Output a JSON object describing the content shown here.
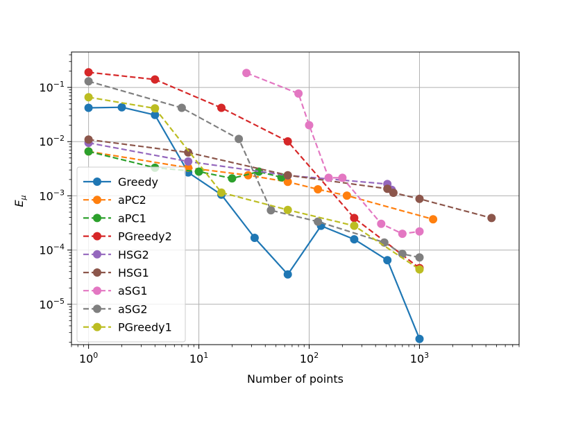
{
  "chart_data": {
    "type": "line",
    "title": "",
    "xlabel": "Number of points",
    "ylabel_main": "E",
    "ylabel_sub": "μ",
    "xscale": "log",
    "yscale": "log",
    "xlim": [
      0.7,
      8000
    ],
    "ylim": [
      1.8e-06,
      0.45
    ],
    "grid": true,
    "legend_position": "lower-left",
    "x_ticks": [
      {
        "value": 1,
        "base": "10",
        "exp": "0"
      },
      {
        "value": 10,
        "base": "10",
        "exp": "1"
      },
      {
        "value": 100,
        "base": "10",
        "exp": "2"
      },
      {
        "value": 1000,
        "base": "10",
        "exp": "3"
      }
    ],
    "y_ticks": [
      {
        "value": 0.1,
        "base": "10",
        "exp": "−1"
      },
      {
        "value": 0.01,
        "base": "10",
        "exp": "−2"
      },
      {
        "value": 0.001,
        "base": "10",
        "exp": "−3"
      },
      {
        "value": 0.0001,
        "base": "10",
        "exp": "−4"
      },
      {
        "value": 1e-05,
        "base": "10",
        "exp": "−5"
      }
    ],
    "series": [
      {
        "name": "Greedy",
        "color": "#1f77b4",
        "dash": "solid",
        "x": [
          1,
          2,
          4,
          8,
          16,
          32,
          64,
          128,
          256,
          512,
          1000
        ],
        "y": [
          0.042,
          0.043,
          0.031,
          0.0027,
          0.00105,
          0.000168,
          3.55e-05,
          0.00028,
          0.000158,
          6.5e-05,
          2.3e-06
        ]
      },
      {
        "name": "aPC2",
        "color": "#ff7f0e",
        "dash": "dashed",
        "x": [
          1,
          8,
          28,
          64,
          120,
          220,
          1330
        ],
        "y": [
          0.0066,
          0.0033,
          0.0024,
          0.00181,
          0.00132,
          0.00101,
          0.00037
        ]
      },
      {
        "name": "aPC1",
        "color": "#2ca02c",
        "dash": "dashed",
        "x": [
          1,
          4,
          10,
          20,
          35,
          56
        ],
        "y": [
          0.0066,
          0.0033,
          0.0028,
          0.0021,
          0.0028,
          0.0022
        ]
      },
      {
        "name": "PGreedy2",
        "color": "#d62728",
        "dash": "dashed",
        "x": [
          1,
          4,
          16,
          64,
          256,
          1000
        ],
        "y": [
          0.19,
          0.14,
          0.042,
          0.0101,
          0.00039,
          4.65e-05
        ]
      },
      {
        "name": "HSG2",
        "color": "#9467bd",
        "dash": "dashed",
        "x": [
          1,
          8,
          64,
          512,
          560
        ],
        "y": [
          0.0095,
          0.0043,
          0.00238,
          0.00165,
          0.00129
        ]
      },
      {
        "name": "HSG1",
        "color": "#8c564b",
        "dash": "dashed",
        "x": [
          1,
          8,
          64,
          512,
          580,
          1000,
          4500
        ],
        "y": [
          0.0109,
          0.0063,
          0.0024,
          0.00135,
          0.00114,
          0.00088,
          0.00039
        ]
      },
      {
        "name": "aSG1",
        "color": "#e377c2",
        "dash": "dashed",
        "x": [
          27,
          80,
          100,
          150,
          200,
          450,
          700,
          1000
        ],
        "y": [
          0.185,
          0.077,
          0.0201,
          0.00215,
          0.00215,
          0.000305,
          0.0002,
          0.00022
        ]
      },
      {
        "name": "aSG2",
        "color": "#7f7f7f",
        "dash": "dashed",
        "x": [
          1,
          7,
          23,
          45,
          120,
          480,
          700,
          1000
        ],
        "y": [
          0.13,
          0.042,
          0.0112,
          0.00054,
          0.000335,
          0.000138,
          8.5e-05,
          7.3e-05
        ]
      },
      {
        "name": "PGreedy1",
        "color": "#bcbd22",
        "dash": "dashed",
        "x": [
          1,
          4,
          16,
          64,
          256,
          1000
        ],
        "y": [
          0.066,
          0.041,
          0.00115,
          0.00055,
          0.00028,
          4.4e-05
        ]
      }
    ]
  }
}
